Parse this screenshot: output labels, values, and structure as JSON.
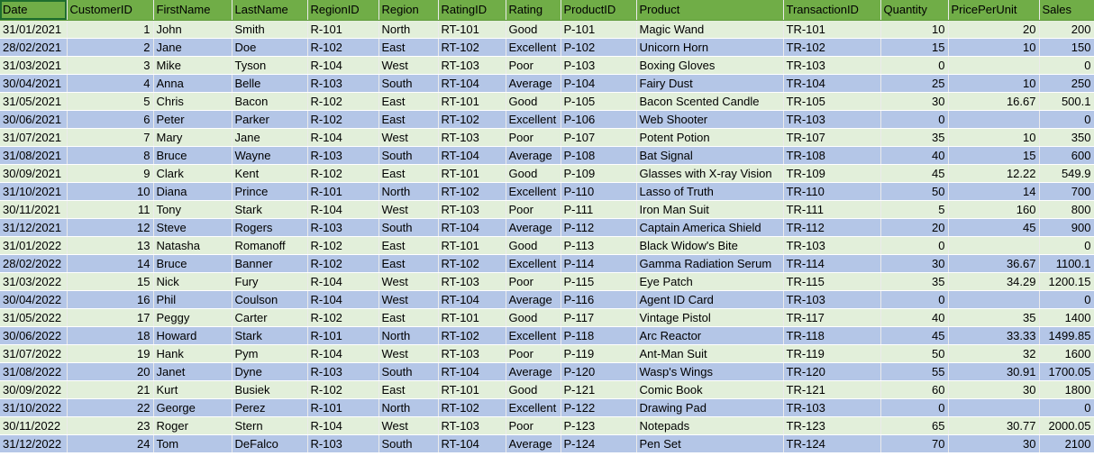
{
  "columns": [
    "Date",
    "CustomerID",
    "FirstName",
    "LastName",
    "RegionID",
    "Region",
    "RatingID",
    "Rating",
    "ProductID",
    "Product",
    "TransactionID",
    "Quantity",
    "PricePerUnit",
    "Sales"
  ],
  "rows": [
    [
      "31/01/2021",
      "1",
      "John",
      "Smith",
      "R-101",
      "North",
      "RT-101",
      "Good",
      "P-101",
      "Magic Wand",
      "TR-101",
      "10",
      "20",
      "200"
    ],
    [
      "28/02/2021",
      "2",
      "Jane",
      "Doe",
      "R-102",
      "East",
      "RT-102",
      "Excellent",
      "P-102",
      "Unicorn Horn",
      "TR-102",
      "15",
      "10",
      "150"
    ],
    [
      "31/03/2021",
      "3",
      "Mike",
      "Tyson",
      "R-104",
      "West",
      "RT-103",
      "Poor",
      "P-103",
      "Boxing Gloves",
      "TR-103",
      "0",
      "",
      "0"
    ],
    [
      "30/04/2021",
      "4",
      "Anna",
      "Belle",
      "R-103",
      "South",
      "RT-104",
      "Average",
      "P-104",
      "Fairy Dust",
      "TR-104",
      "25",
      "10",
      "250"
    ],
    [
      "31/05/2021",
      "5",
      "Chris",
      "Bacon",
      "R-102",
      "East",
      "RT-101",
      "Good",
      "P-105",
      "Bacon Scented Candle",
      "TR-105",
      "30",
      "16.67",
      "500.1"
    ],
    [
      "30/06/2021",
      "6",
      "Peter",
      "Parker",
      "R-102",
      "East",
      "RT-102",
      "Excellent",
      "P-106",
      "Web Shooter",
      "TR-103",
      "0",
      "",
      "0"
    ],
    [
      "31/07/2021",
      "7",
      "Mary",
      "Jane",
      "R-104",
      "West",
      "RT-103",
      "Poor",
      "P-107",
      "Potent Potion",
      "TR-107",
      "35",
      "10",
      "350"
    ],
    [
      "31/08/2021",
      "8",
      "Bruce",
      "Wayne",
      "R-103",
      "South",
      "RT-104",
      "Average",
      "P-108",
      "Bat Signal",
      "TR-108",
      "40",
      "15",
      "600"
    ],
    [
      "30/09/2021",
      "9",
      "Clark",
      "Kent",
      "R-102",
      "East",
      "RT-101",
      "Good",
      "P-109",
      "Glasses with X-ray Vision",
      "TR-109",
      "45",
      "12.22",
      "549.9"
    ],
    [
      "31/10/2021",
      "10",
      "Diana",
      "Prince",
      "R-101",
      "North",
      "RT-102",
      "Excellent",
      "P-110",
      "Lasso of Truth",
      "TR-110",
      "50",
      "14",
      "700"
    ],
    [
      "30/11/2021",
      "11",
      "Tony",
      "Stark",
      "R-104",
      "West",
      "RT-103",
      "Poor",
      "P-111",
      "Iron Man Suit",
      "TR-111",
      "5",
      "160",
      "800"
    ],
    [
      "31/12/2021",
      "12",
      "Steve",
      "Rogers",
      "R-103",
      "South",
      "RT-104",
      "Average",
      "P-112",
      "Captain America Shield",
      "TR-112",
      "20",
      "45",
      "900"
    ],
    [
      "31/01/2022",
      "13",
      "Natasha",
      "Romanoff",
      "R-102",
      "East",
      "RT-101",
      "Good",
      "P-113",
      "Black Widow's Bite",
      "TR-103",
      "0",
      "",
      "0"
    ],
    [
      "28/02/2022",
      "14",
      "Bruce",
      "Banner",
      "R-102",
      "East",
      "RT-102",
      "Excellent",
      "P-114",
      "Gamma Radiation Serum",
      "TR-114",
      "30",
      "36.67",
      "1100.1"
    ],
    [
      "31/03/2022",
      "15",
      "Nick",
      "Fury",
      "R-104",
      "West",
      "RT-103",
      "Poor",
      "P-115",
      "Eye Patch",
      "TR-115",
      "35",
      "34.29",
      "1200.15"
    ],
    [
      "30/04/2022",
      "16",
      "Phil",
      "Coulson",
      "R-104",
      "West",
      "RT-104",
      "Average",
      "P-116",
      "Agent ID Card",
      "TR-103",
      "0",
      "",
      "0"
    ],
    [
      "31/05/2022",
      "17",
      "Peggy",
      "Carter",
      "R-102",
      "East",
      "RT-101",
      "Good",
      "P-117",
      "Vintage Pistol",
      "TR-117",
      "40",
      "35",
      "1400"
    ],
    [
      "30/06/2022",
      "18",
      "Howard",
      "Stark",
      "R-101",
      "North",
      "RT-102",
      "Excellent",
      "P-118",
      "Arc Reactor",
      "TR-118",
      "45",
      "33.33",
      "1499.85"
    ],
    [
      "31/07/2022",
      "19",
      "Hank",
      "Pym",
      "R-104",
      "West",
      "RT-103",
      "Poor",
      "P-119",
      "Ant-Man Suit",
      "TR-119",
      "50",
      "32",
      "1600"
    ],
    [
      "31/08/2022",
      "20",
      "Janet",
      "Dyne",
      "R-103",
      "South",
      "RT-104",
      "Average",
      "P-120",
      "Wasp's Wings",
      "TR-120",
      "55",
      "30.91",
      "1700.05"
    ],
    [
      "30/09/2022",
      "21",
      "Kurt",
      "Busiek",
      "R-102",
      "East",
      "RT-101",
      "Good",
      "P-121",
      "Comic Book",
      "TR-121",
      "60",
      "30",
      "1800"
    ],
    [
      "31/10/2022",
      "22",
      "George",
      "Perez",
      "R-101",
      "North",
      "RT-102",
      "Excellent",
      "P-122",
      "Drawing Pad",
      "TR-103",
      "0",
      "",
      "0"
    ],
    [
      "30/11/2022",
      "23",
      "Roger",
      "Stern",
      "R-104",
      "West",
      "RT-103",
      "Poor",
      "P-123",
      "Notepads",
      "TR-123",
      "65",
      "30.77",
      "2000.05"
    ],
    [
      "31/12/2022",
      "24",
      "Tom",
      "DeFalco",
      "R-103",
      "South",
      "RT-104",
      "Average",
      "P-124",
      "Pen Set",
      "TR-124",
      "70",
      "30",
      "2100"
    ]
  ],
  "numeric_columns": [
    1,
    11,
    12,
    13
  ],
  "selected_cell": "Date",
  "colors": {
    "header": "#70ad47",
    "band_a": "#e2efda",
    "band_b": "#b4c6e7"
  }
}
